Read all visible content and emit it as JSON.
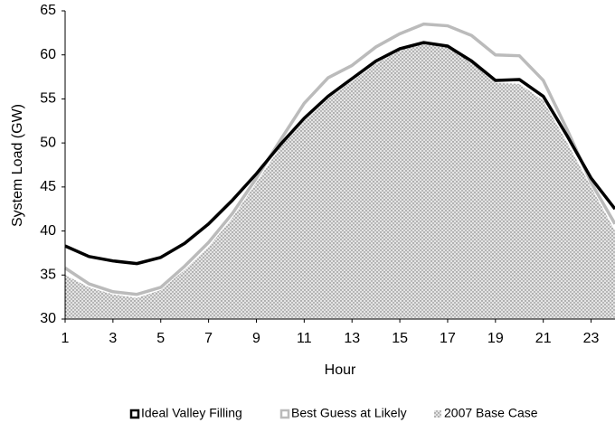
{
  "chart_data": {
    "type": "line",
    "x_label": "Hour",
    "y_label": "System Load (GW)",
    "x": [
      1,
      2,
      3,
      4,
      5,
      6,
      7,
      8,
      9,
      10,
      11,
      12,
      13,
      14,
      15,
      16,
      17,
      18,
      19,
      20,
      21,
      22,
      23,
      24
    ],
    "xlim": [
      1,
      24
    ],
    "xticks": [
      1,
      3,
      5,
      7,
      9,
      11,
      13,
      15,
      17,
      19,
      21,
      23
    ],
    "ylim": [
      30,
      65
    ],
    "yticks": [
      30,
      35,
      40,
      45,
      50,
      55,
      60,
      65
    ],
    "legend": "bottom",
    "series": [
      {
        "name": "Ideal Valley Filling",
        "color": "#000000",
        "kind": "line",
        "values": [
          38.3,
          37.1,
          36.6,
          36.3,
          37.0,
          38.6,
          40.8,
          43.5,
          46.5,
          49.8,
          52.8,
          55.3,
          57.3,
          59.3,
          60.7,
          61.4,
          61.0,
          59.3,
          57.1,
          57.2,
          55.3,
          50.8,
          46.0,
          42.5
        ]
      },
      {
        "name": "Best Guess at Likely",
        "color": "#bbbbbb",
        "kind": "line",
        "values": [
          35.8,
          34.0,
          33.1,
          32.8,
          33.6,
          36.0,
          38.7,
          42.0,
          46.0,
          50.3,
          54.5,
          57.4,
          58.8,
          60.9,
          62.4,
          63.5,
          63.3,
          62.2,
          60.0,
          59.9,
          57.1,
          51.5,
          45.5,
          40.8
        ]
      },
      {
        "name": "2007 Base Case",
        "color": "#999999",
        "kind": "area",
        "values": [
          35.0,
          33.6,
          32.8,
          32.4,
          33.3,
          35.6,
          38.2,
          41.5,
          45.5,
          49.5,
          52.5,
          55.0,
          57.0,
          59.0,
          60.5,
          61.3,
          60.8,
          59.2,
          56.8,
          56.7,
          54.8,
          50.0,
          45.0,
          40.0
        ]
      }
    ]
  }
}
